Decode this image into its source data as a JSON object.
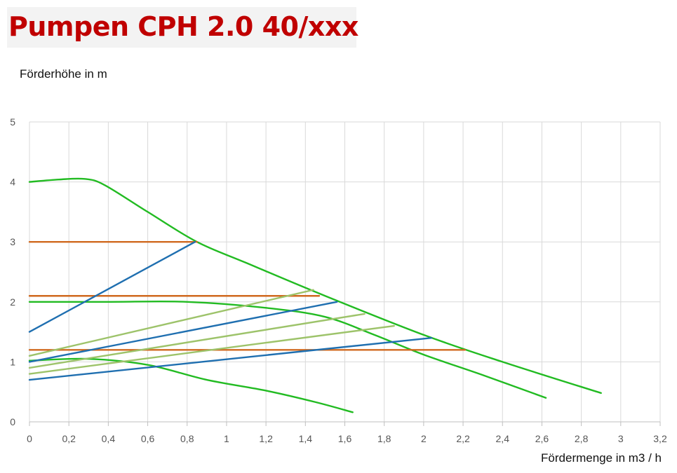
{
  "title": "Pumpen CPH 2.0 40/xxx",
  "chart_data": {
    "type": "line",
    "ylabel": "Förderhöhe in m",
    "xlabel": "Fördermenge in m3 / h",
    "xlim": [
      0,
      3.2
    ],
    "ylim": [
      0,
      5
    ],
    "xticks": [
      0,
      0.2,
      0.4,
      0.6,
      0.8,
      1,
      1.2,
      1.4,
      1.6,
      1.8,
      2,
      2.2,
      2.4,
      2.6,
      2.8,
      3,
      3.2
    ],
    "xtick_labels": [
      "0",
      "0,2",
      "0,4",
      "0,6",
      "0,8",
      "1",
      "1,2",
      "1,4",
      "1,6",
      "1,8",
      "2",
      "2,2",
      "2,4",
      "2,6",
      "2,8",
      "3",
      "3,2"
    ],
    "yticks": [
      0,
      1,
      2,
      3,
      4,
      5
    ],
    "ytick_labels": [
      "0",
      "1",
      "2",
      "3",
      "4",
      "5"
    ],
    "grid": true,
    "legend": "none",
    "colors": {
      "green": "#22bb22",
      "light_green": "#9dc36a",
      "blue": "#1f6fb0",
      "orange": "#d0691f"
    },
    "series": [
      {
        "color": "green",
        "smooth": true,
        "points": [
          [
            0,
            4.0
          ],
          [
            0.15,
            4.04
          ],
          [
            0.28,
            4.05
          ],
          [
            0.38,
            3.95
          ],
          [
            0.6,
            3.5
          ],
          [
            0.85,
            3.0
          ],
          [
            1.1,
            2.65
          ],
          [
            1.5,
            2.1
          ],
          [
            2.0,
            1.45
          ],
          [
            2.4,
            1.0
          ],
          [
            2.9,
            0.48
          ]
        ]
      },
      {
        "color": "green",
        "smooth": true,
        "points": [
          [
            0,
            2.0
          ],
          [
            0.4,
            2.0
          ],
          [
            0.8,
            2.0
          ],
          [
            1.2,
            1.9
          ],
          [
            1.5,
            1.75
          ],
          [
            1.75,
            1.45
          ],
          [
            2.0,
            1.12
          ],
          [
            2.3,
            0.78
          ],
          [
            2.62,
            0.4
          ]
        ]
      },
      {
        "color": "green",
        "smooth": true,
        "points": [
          [
            0,
            1.02
          ],
          [
            0.3,
            1.05
          ],
          [
            0.6,
            0.95
          ],
          [
            0.9,
            0.7
          ],
          [
            1.2,
            0.52
          ],
          [
            1.45,
            0.33
          ],
          [
            1.64,
            0.16
          ]
        ]
      },
      {
        "color": "orange",
        "points": [
          [
            0,
            3.0
          ],
          [
            0.85,
            3.0
          ]
        ]
      },
      {
        "color": "orange",
        "points": [
          [
            0,
            2.1
          ],
          [
            1.47,
            2.1
          ]
        ]
      },
      {
        "color": "orange",
        "points": [
          [
            0,
            1.2
          ],
          [
            2.21,
            1.2
          ]
        ]
      },
      {
        "color": "blue",
        "points": [
          [
            0,
            1.5
          ],
          [
            0.84,
            3.0
          ]
        ]
      },
      {
        "color": "blue",
        "points": [
          [
            0,
            1.0
          ],
          [
            1.56,
            2.0
          ]
        ]
      },
      {
        "color": "blue",
        "points": [
          [
            0,
            0.7
          ],
          [
            2.04,
            1.4
          ]
        ]
      },
      {
        "color": "light_green",
        "points": [
          [
            0,
            1.1
          ],
          [
            1.44,
            2.2
          ]
        ]
      },
      {
        "color": "light_green",
        "points": [
          [
            0,
            0.9
          ],
          [
            1.7,
            1.8
          ]
        ]
      },
      {
        "color": "light_green",
        "points": [
          [
            0,
            0.8
          ],
          [
            1.85,
            1.6
          ]
        ]
      }
    ]
  }
}
